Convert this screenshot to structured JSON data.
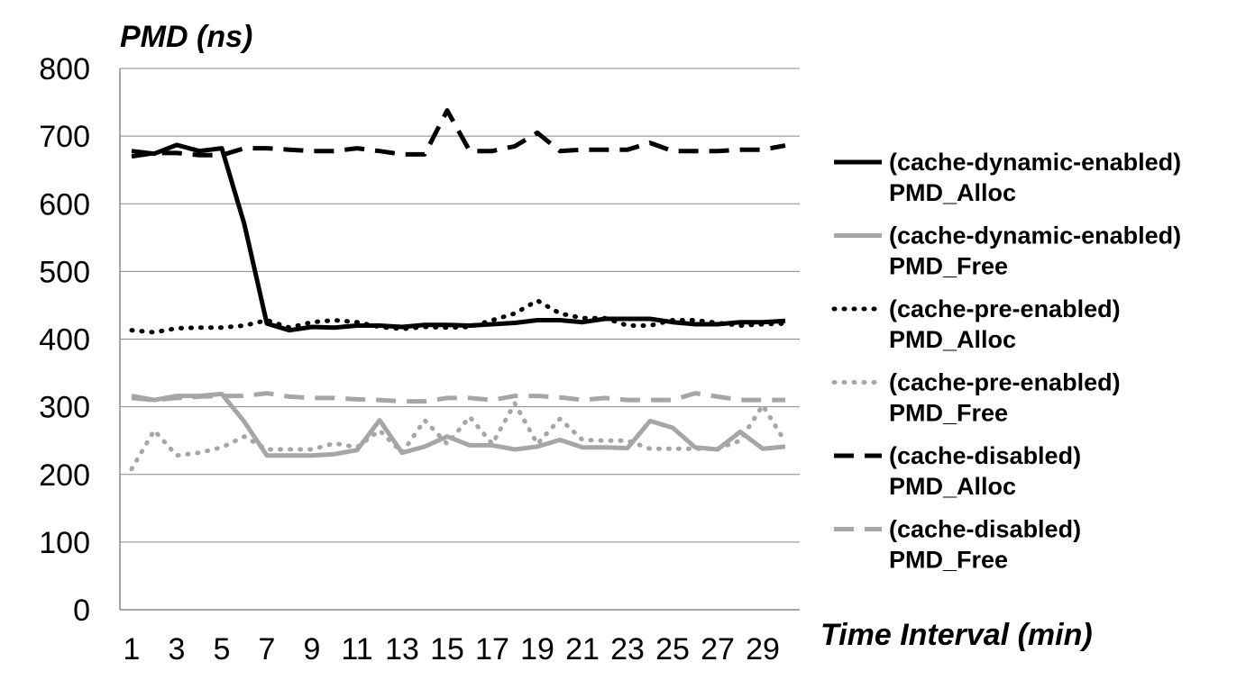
{
  "chart_data": {
    "type": "line",
    "title": "",
    "xlabel": "Time Interval (min)",
    "ylabel": "PMD (ns)",
    "ylim": [
      0,
      800
    ],
    "yticks": [
      0,
      100,
      200,
      300,
      400,
      500,
      600,
      700,
      800
    ],
    "xlim": [
      1,
      30
    ],
    "xticks": [
      1,
      3,
      5,
      7,
      9,
      11,
      13,
      15,
      17,
      19,
      21,
      23,
      25,
      27,
      29
    ],
    "x": [
      1,
      2,
      3,
      4,
      5,
      6,
      7,
      8,
      9,
      10,
      11,
      12,
      13,
      14,
      15,
      16,
      17,
      18,
      19,
      20,
      21,
      22,
      23,
      24,
      25,
      26,
      27,
      28,
      29,
      30
    ],
    "grid": "horizontal",
    "legend_position": "right",
    "series": [
      {
        "name": "(cache-dynamic-enabled) PMD_Alloc",
        "name_lines": [
          "(cache-dynamic-enabled)",
          "PMD_Alloc"
        ],
        "color": "#000000",
        "dash": "solid",
        "values": [
          678,
          674,
          687,
          678,
          682,
          570,
          423,
          413,
          418,
          417,
          420,
          420,
          418,
          421,
          421,
          420,
          422,
          424,
          428,
          428,
          425,
          430,
          430,
          430,
          425,
          422,
          422,
          425,
          425,
          427
        ]
      },
      {
        "name": "(cache-dynamic-enabled) PMD_Free",
        "name_lines": [
          "(cache-dynamic-enabled)",
          "PMD_Free"
        ],
        "color": "#a6a6a6",
        "dash": "solid",
        "values": [
          316,
          310,
          316,
          316,
          319,
          278,
          228,
          228,
          228,
          230,
          236,
          280,
          232,
          241,
          256,
          243,
          243,
          237,
          241,
          251,
          240,
          240,
          239,
          279,
          269,
          240,
          237,
          263,
          238,
          241
        ]
      },
      {
        "name": "(cache-pre-enabled) PMD_Alloc",
        "name_lines": [
          "(cache-pre-enabled)",
          "PMD_Alloc"
        ],
        "color": "#000000",
        "dash": "dot",
        "values": [
          413,
          410,
          416,
          417,
          417,
          420,
          428,
          417,
          425,
          428,
          425,
          418,
          415,
          418,
          417,
          418,
          428,
          438,
          457,
          438,
          431,
          431,
          420,
          420,
          428,
          428,
          424,
          420,
          422,
          423
        ]
      },
      {
        "name": "(cache-pre-enabled) PMD_Free",
        "name_lines": [
          "(cache-pre-enabled)",
          "PMD_Free"
        ],
        "color": "#a6a6a6",
        "dash": "dot",
        "values": [
          208,
          265,
          228,
          232,
          240,
          256,
          237,
          237,
          237,
          246,
          240,
          265,
          232,
          280,
          245,
          285,
          245,
          305,
          245,
          282,
          251,
          250,
          250,
          238,
          238,
          238,
          238,
          250,
          302,
          248
        ]
      },
      {
        "name": "(cache-disabled) PMD_Alloc",
        "name_lines": [
          "(cache-disabled)",
          "PMD_Alloc"
        ],
        "color": "#000000",
        "dash": "dash",
        "values": [
          670,
          675,
          675,
          672,
          672,
          682,
          682,
          680,
          678,
          678,
          682,
          678,
          673,
          673,
          738,
          678,
          678,
          685,
          705,
          678,
          680,
          680,
          680,
          690,
          678,
          678,
          678,
          680,
          680,
          686
        ]
      },
      {
        "name": "(cache-disabled) PMD_Free",
        "name_lines": [
          "(cache-disabled)",
          "PMD_Free"
        ],
        "color": "#a6a6a6",
        "dash": "dash",
        "values": [
          313,
          310,
          313,
          315,
          316,
          316,
          320,
          315,
          313,
          313,
          311,
          310,
          308,
          308,
          313,
          313,
          310,
          316,
          316,
          314,
          310,
          313,
          310,
          310,
          310,
          320,
          315,
          310,
          310,
          310
        ]
      }
    ]
  }
}
